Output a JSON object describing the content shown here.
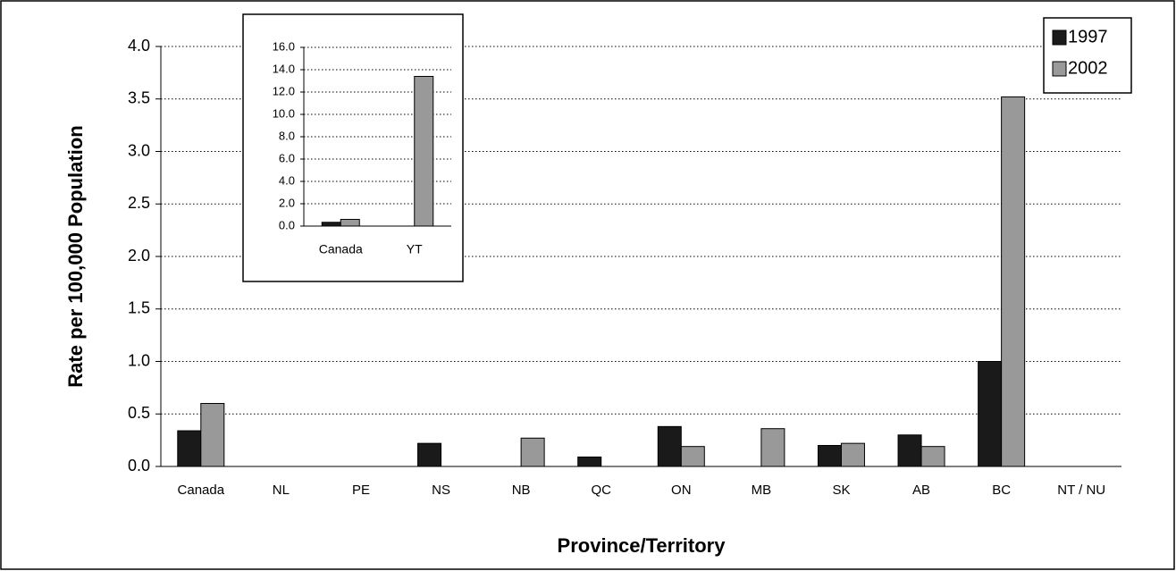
{
  "chart_data": [
    {
      "type": "bar",
      "x_label": "Province/Territory",
      "y_label": "Rate per 100,000 Population",
      "categories": [
        "Canada",
        "NL",
        "PE",
        "NS",
        "NB",
        "QC",
        "ON",
        "MB",
        "SK",
        "AB",
        "BC",
        "NT / NU"
      ],
      "series": [
        {
          "name": "1997",
          "color": "#1a1a1a",
          "values": [
            0.34,
            0,
            0,
            0.22,
            0,
            0.09,
            0.38,
            0,
            0.2,
            0.3,
            1.0,
            0
          ]
        },
        {
          "name": "2002",
          "color": "#999999",
          "values": [
            0.6,
            0,
            0,
            0,
            0.27,
            0,
            0.19,
            0.36,
            0.22,
            0.19,
            3.52,
            0
          ]
        }
      ],
      "ylim": [
        0,
        4
      ],
      "yticks": [
        {
          "value": 0,
          "label": "0.0"
        },
        0.5,
        {
          "value": 1,
          "label": "1.0"
        },
        1.5,
        {
          "value": 2,
          "label": "2.0"
        },
        2.5,
        {
          "value": 3,
          "label": "3.0"
        },
        3.5,
        {
          "value": 4,
          "label": "4.0"
        }
      ],
      "grid": true,
      "legend": "top-right"
    },
    {
      "type": "bar",
      "categories": [
        "Canada",
        "YT"
      ],
      "series": [
        {
          "color": "#1a1a1a",
          "values": [
            0.34,
            0
          ]
        },
        {
          "color": "#999999",
          "values": [
            0.6,
            13.4
          ]
        }
      ],
      "ylim": [
        0,
        16
      ],
      "yticks": [
        {
          "value": 0,
          "label": "0.0"
        },
        {
          "value": 2,
          "label": "2.0"
        },
        {
          "value": 4,
          "label": "4.0"
        },
        {
          "value": 6,
          "label": "6.0"
        },
        {
          "value": 8,
          "label": "8.0"
        },
        {
          "value": 10,
          "label": "10.0"
        },
        {
          "value": 12,
          "label": "12.0"
        },
        {
          "value": 14,
          "label": "14.0"
        },
        {
          "value": 16,
          "label": "16.0"
        }
      ],
      "grid": true
    }
  ]
}
